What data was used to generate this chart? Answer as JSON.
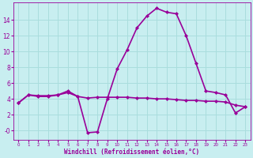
{
  "xlabel": "Windchill (Refroidissement éolien,°C)",
  "background_color": "#c8eef0",
  "grid_color": "#aadddd",
  "line_color": "#990099",
  "x_ticks": [
    0,
    1,
    2,
    3,
    4,
    5,
    6,
    7,
    8,
    9,
    10,
    11,
    12,
    13,
    14,
    15,
    16,
    17,
    18,
    19,
    20,
    21,
    22,
    23
  ],
  "y_ticks": [
    0,
    2,
    4,
    6,
    8,
    10,
    12,
    14
  ],
  "y_tick_labels": [
    "-0",
    "2",
    "4",
    "6",
    "8",
    "10",
    "12",
    "14"
  ],
  "ylim": [
    -1.2,
    16.2
  ],
  "xlim": [
    -0.5,
    23.5
  ],
  "series": [
    {
      "x": [
        0,
        1,
        2,
        3,
        4,
        5,
        6,
        7,
        8,
        9,
        10,
        11,
        12,
        13,
        14,
        15,
        16,
        17,
        18,
        19,
        20,
        21,
        22,
        23
      ],
      "y": [
        3.5,
        4.5,
        4.4,
        4.4,
        4.5,
        4.8,
        4.3,
        4.1,
        4.2,
        4.2,
        4.2,
        4.2,
        4.1,
        4.1,
        4.0,
        4.0,
        3.9,
        3.8,
        3.8,
        3.7,
        3.7,
        3.6,
        3.2,
        3.0
      ],
      "marker": "D",
      "linewidth": 1.2,
      "markersize": 2.0
    },
    {
      "x": [
        0,
        1,
        2,
        3,
        4,
        5,
        6,
        7,
        8,
        9,
        10,
        11,
        12,
        13,
        14,
        15,
        16,
        17,
        18,
        19,
        20,
        21,
        22,
        23
      ],
      "y": [
        3.5,
        4.5,
        4.3,
        4.3,
        4.5,
        5.0,
        4.3,
        -0.3,
        -0.2,
        4.0,
        7.8,
        10.2,
        13.0,
        14.5,
        15.5,
        15.0,
        14.8,
        12.0,
        8.5,
        5.0,
        4.8,
        4.5,
        2.2,
        3.0
      ],
      "marker": "D",
      "linewidth": 1.2,
      "markersize": 2.0
    }
  ]
}
